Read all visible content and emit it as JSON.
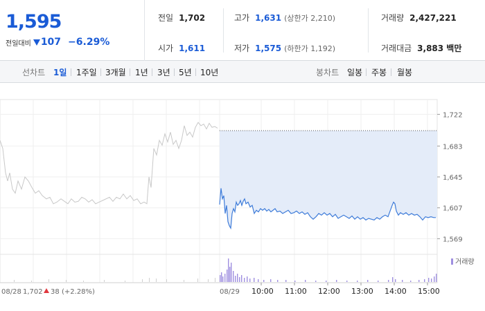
{
  "summary": {
    "current_price": "1,595",
    "change_label": "전일대비",
    "change_icon": "down-triangle-icon",
    "change_value": "107",
    "change_percent": "−6.29%",
    "prev_close_label": "전일",
    "prev_close": "1,702",
    "open_label": "시가",
    "open": "1,611",
    "high_label": "고가",
    "high": "1,631",
    "upper_limit": "(상한가 2,210)",
    "low_label": "저가",
    "low": "1,575",
    "lower_limit": "(하한가 1,192)",
    "volume_label": "거래량",
    "volume": "2,427,221",
    "amount_label": "거래대금",
    "amount": "3,883 백만"
  },
  "toolbar": {
    "line_chart_label": "선차트",
    "line_periods": [
      "1일",
      "1주일",
      "3개월",
      "1년",
      "3년",
      "5년",
      "10년"
    ],
    "active_period": "1일",
    "candle_chart_label": "봉차트",
    "candle_periods": [
      "일봉",
      "주봉",
      "월봉"
    ]
  },
  "colors": {
    "accent_blue": "#1a5bd6",
    "prev_day_line": "#c8c8c8",
    "today_line": "#3d7bd9",
    "today_fill": "#e4ecf9",
    "volume_today": "#9f8fe0",
    "volume_prev": "#cfcfcf",
    "up_red": "#e0383e"
  },
  "chart_data": {
    "type": "line",
    "ylim": [
      1560,
      1730
    ],
    "yticks": [
      "1,722",
      "1,683",
      "1,645",
      "1,607",
      "1,569"
    ],
    "ytick_values": [
      1722,
      1683,
      1645,
      1607,
      1569
    ],
    "reference_line": 1702,
    "prev_day": {
      "date_label": "08/28",
      "close": "1,702",
      "change_icon": "up-triangle-icon",
      "change": "38",
      "change_percent": "(+2.28%)",
      "series": [
        [
          0,
          1690
        ],
        [
          4,
          1680
        ],
        [
          8,
          1650
        ],
        [
          11,
          1640
        ],
        [
          14,
          1650
        ],
        [
          18,
          1630
        ],
        [
          22,
          1625
        ],
        [
          26,
          1640
        ],
        [
          31,
          1630
        ],
        [
          36,
          1645
        ],
        [
          41,
          1640
        ],
        [
          46,
          1632
        ],
        [
          51,
          1625
        ],
        [
          56,
          1628
        ],
        [
          61,
          1622
        ],
        [
          67,
          1618
        ],
        [
          72,
          1620
        ],
        [
          77,
          1612
        ],
        [
          82,
          1614
        ],
        [
          88,
          1618
        ],
        [
          93,
          1615
        ],
        [
          98,
          1612
        ],
        [
          103,
          1618
        ],
        [
          108,
          1614
        ],
        [
          113,
          1615
        ],
        [
          118,
          1620
        ],
        [
          123,
          1618
        ],
        [
          128,
          1614
        ],
        [
          133,
          1617
        ],
        [
          138,
          1612
        ],
        [
          143,
          1614
        ],
        [
          148,
          1616
        ],
        [
          153,
          1618
        ],
        [
          158,
          1620
        ],
        [
          163,
          1615
        ],
        [
          168,
          1620
        ],
        [
          173,
          1618
        ],
        [
          178,
          1624
        ],
        [
          183,
          1618
        ],
        [
          188,
          1622
        ],
        [
          193,
          1616
        ],
        [
          198,
          1618
        ],
        [
          203,
          1612
        ],
        [
          208,
          1614
        ],
        [
          212,
          1612
        ],
        [
          215,
          1645
        ],
        [
          218,
          1632
        ],
        [
          222,
          1680
        ],
        [
          226,
          1672
        ],
        [
          230,
          1690
        ],
        [
          234,
          1684
        ],
        [
          238,
          1698
        ],
        [
          242,
          1688
        ],
        [
          246,
          1700
        ],
        [
          250,
          1685
        ],
        [
          254,
          1690
        ],
        [
          258,
          1680
        ],
        [
          262,
          1690
        ],
        [
          266,
          1708
        ],
        [
          270,
          1696
        ],
        [
          274,
          1700
        ],
        [
          278,
          1694
        ],
        [
          282,
          1706
        ],
        [
          286,
          1712
        ],
        [
          290,
          1708
        ],
        [
          294,
          1710
        ],
        [
          298,
          1704
        ],
        [
          302,
          1711
        ],
        [
          306,
          1706
        ],
        [
          310,
          1707
        ],
        [
          314,
          1705
        ]
      ]
    },
    "today": {
      "date_label": "08/29",
      "xticks": [
        "10:00",
        "11:00",
        "12:00",
        "13:00",
        "14:00",
        "15:00"
      ],
      "xtick_positions": [
        377,
        425,
        473,
        521,
        569,
        617
      ],
      "series": [
        [
          317,
          1611
        ],
        [
          319,
          1631
        ],
        [
          321,
          1618
        ],
        [
          323,
          1622
        ],
        [
          325,
          1600
        ],
        [
          327,
          1610
        ],
        [
          329,
          1590
        ],
        [
          331,
          1585
        ],
        [
          333,
          1582
        ],
        [
          335,
          1600
        ],
        [
          337,
          1606
        ],
        [
          339,
          1602
        ],
        [
          341,
          1614
        ],
        [
          343,
          1610
        ],
        [
          345,
          1612
        ],
        [
          347,
          1616
        ],
        [
          349,
          1610
        ],
        [
          351,
          1615
        ],
        [
          353,
          1618
        ],
        [
          355,
          1612
        ],
        [
          358,
          1614
        ],
        [
          361,
          1608
        ],
        [
          364,
          1610
        ],
        [
          367,
          1600
        ],
        [
          370,
          1604
        ],
        [
          373,
          1602
        ],
        [
          376,
          1606
        ],
        [
          379,
          1604
        ],
        [
          382,
          1606
        ],
        [
          385,
          1603
        ],
        [
          388,
          1605
        ],
        [
          391,
          1602
        ],
        [
          394,
          1604
        ],
        [
          397,
          1606
        ],
        [
          400,
          1602
        ],
        [
          404,
          1603
        ],
        [
          408,
          1600
        ],
        [
          412,
          1602
        ],
        [
          416,
          1604
        ],
        [
          420,
          1600
        ],
        [
          424,
          1601
        ],
        [
          428,
          1603
        ],
        [
          432,
          1600
        ],
        [
          436,
          1602
        ],
        [
          440,
          1599
        ],
        [
          444,
          1601
        ],
        [
          448,
          1596
        ],
        [
          452,
          1593
        ],
        [
          456,
          1596
        ],
        [
          460,
          1600
        ],
        [
          464,
          1598
        ],
        [
          468,
          1601
        ],
        [
          472,
          1598
        ],
        [
          476,
          1600
        ],
        [
          480,
          1596
        ],
        [
          484,
          1599
        ],
        [
          488,
          1594
        ],
        [
          492,
          1596
        ],
        [
          496,
          1598
        ],
        [
          500,
          1596
        ],
        [
          504,
          1594
        ],
        [
          508,
          1597
        ],
        [
          512,
          1593
        ],
        [
          516,
          1596
        ],
        [
          520,
          1593
        ],
        [
          524,
          1595
        ],
        [
          528,
          1592
        ],
        [
          532,
          1594
        ],
        [
          536,
          1593
        ],
        [
          540,
          1592
        ],
        [
          544,
          1595
        ],
        [
          548,
          1593
        ],
        [
          552,
          1596
        ],
        [
          556,
          1598
        ],
        [
          560,
          1596
        ],
        [
          563,
          1603
        ],
        [
          566,
          1610
        ],
        [
          568,
          1614
        ],
        [
          570,
          1612
        ],
        [
          572,
          1603
        ],
        [
          575,
          1598
        ],
        [
          578,
          1601
        ],
        [
          582,
          1599
        ],
        [
          586,
          1601
        ],
        [
          590,
          1598
        ],
        [
          594,
          1600
        ],
        [
          598,
          1598
        ],
        [
          602,
          1599
        ],
        [
          606,
          1596
        ],
        [
          610,
          1592
        ],
        [
          614,
          1596
        ],
        [
          618,
          1595
        ],
        [
          622,
          1596
        ],
        [
          626,
          1595
        ],
        [
          629,
          1595
        ]
      ]
    },
    "volume": {
      "label": "거래량",
      "prev_bars": [
        [
          20,
          3
        ],
        [
          45,
          2
        ],
        [
          70,
          4
        ],
        [
          95,
          3
        ],
        [
          120,
          2
        ],
        [
          150,
          3
        ],
        [
          180,
          2
        ],
        [
          205,
          4
        ],
        [
          215,
          6
        ],
        [
          225,
          5
        ],
        [
          240,
          4
        ],
        [
          265,
          3
        ],
        [
          285,
          5
        ],
        [
          300,
          4
        ],
        [
          310,
          6
        ]
      ],
      "today_bars": [
        [
          317,
          10
        ],
        [
          319,
          14
        ],
        [
          321,
          8
        ],
        [
          324,
          12
        ],
        [
          327,
          18
        ],
        [
          329,
          34
        ],
        [
          331,
          22
        ],
        [
          333,
          28
        ],
        [
          336,
          16
        ],
        [
          339,
          9
        ],
        [
          342,
          12
        ],
        [
          345,
          7
        ],
        [
          348,
          10
        ],
        [
          352,
          6
        ],
        [
          356,
          8
        ],
        [
          360,
          5
        ],
        [
          366,
          6
        ],
        [
          372,
          4
        ],
        [
          380,
          3
        ],
        [
          390,
          4
        ],
        [
          400,
          3
        ],
        [
          412,
          3
        ],
        [
          425,
          2
        ],
        [
          440,
          3
        ],
        [
          455,
          2
        ],
        [
          470,
          2
        ],
        [
          485,
          3
        ],
        [
          500,
          2
        ],
        [
          515,
          2
        ],
        [
          530,
          3
        ],
        [
          545,
          2
        ],
        [
          560,
          3
        ],
        [
          566,
          7
        ],
        [
          570,
          4
        ],
        [
          580,
          3
        ],
        [
          592,
          2
        ],
        [
          604,
          3
        ],
        [
          612,
          4
        ],
        [
          618,
          6
        ],
        [
          622,
          5
        ],
        [
          626,
          8
        ],
        [
          629,
          12
        ]
      ]
    }
  }
}
